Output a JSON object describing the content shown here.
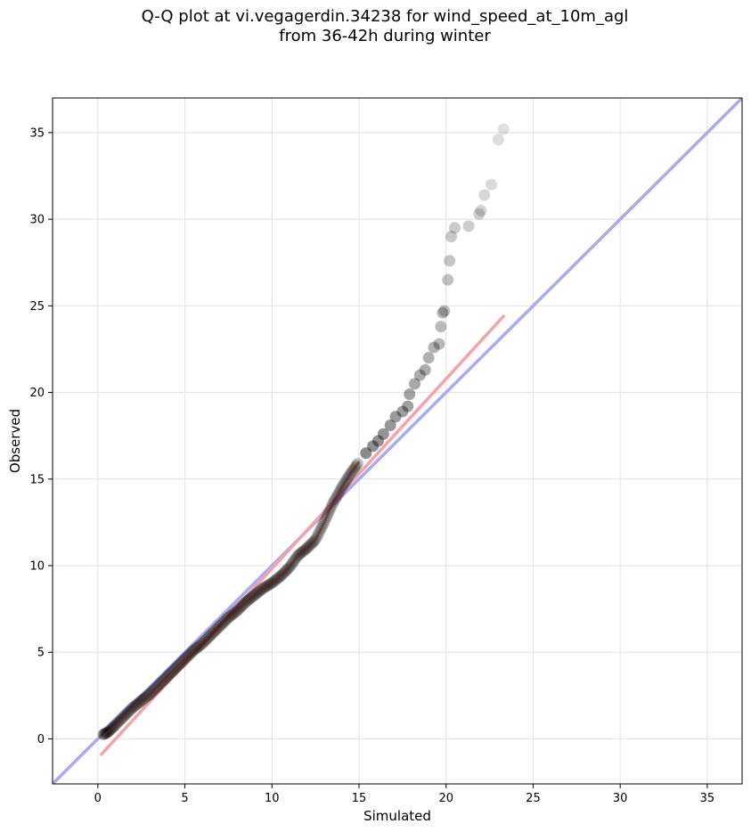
{
  "chart_data": {
    "type": "scatter",
    "title_lines": [
      "Q-Q plot at vi.vegagerdin.34238 for wind_speed_at_10m_agl",
      "from 36-42h during winter"
    ],
    "xlabel": "Simulated",
    "ylabel": "Observed",
    "xlim": [
      -2.6,
      37.0
    ],
    "ylim": [
      -2.6,
      37.0
    ],
    "xticks": [
      0,
      5,
      10,
      15,
      20,
      25,
      30,
      35
    ],
    "yticks": [
      0,
      5,
      10,
      15,
      20,
      25,
      30,
      35
    ],
    "grid": true,
    "quantile_curve": [
      [
        0.3,
        0.25
      ],
      [
        0.6,
        0.4
      ],
      [
        1.0,
        0.8
      ],
      [
        1.5,
        1.3
      ],
      [
        2.0,
        1.8
      ],
      [
        2.5,
        2.2
      ],
      [
        3.0,
        2.6
      ],
      [
        3.5,
        3.1
      ],
      [
        4.0,
        3.6
      ],
      [
        4.5,
        4.1
      ],
      [
        5.0,
        4.6
      ],
      [
        5.5,
        5.1
      ],
      [
        6.0,
        5.5
      ],
      [
        6.5,
        6.0
      ],
      [
        7.0,
        6.5
      ],
      [
        7.5,
        7.0
      ],
      [
        8.0,
        7.4
      ],
      [
        8.5,
        7.9
      ],
      [
        9.0,
        8.3
      ],
      [
        9.5,
        8.7
      ],
      [
        10.0,
        9.0
      ],
      [
        10.5,
        9.4
      ],
      [
        11.0,
        9.9
      ],
      [
        11.5,
        10.6
      ],
      [
        12.0,
        11.0
      ],
      [
        12.5,
        11.5
      ],
      [
        13.0,
        12.5
      ],
      [
        13.5,
        13.6
      ],
      [
        14.0,
        14.5
      ],
      [
        14.5,
        15.3
      ],
      [
        15.0,
        16.0
      ]
    ],
    "tail_points": [
      [
        15.4,
        16.5
      ],
      [
        15.8,
        16.9
      ],
      [
        16.1,
        17.2
      ],
      [
        16.4,
        17.6
      ],
      [
        16.8,
        18.1
      ],
      [
        17.1,
        18.6
      ],
      [
        17.5,
        18.9
      ],
      [
        17.8,
        19.2
      ],
      [
        17.9,
        19.9
      ],
      [
        18.2,
        20.5
      ],
      [
        18.5,
        21.0
      ],
      [
        18.8,
        21.3
      ],
      [
        19.0,
        22.0
      ],
      [
        19.3,
        22.6
      ],
      [
        19.6,
        22.8
      ],
      [
        19.7,
        23.8
      ],
      [
        19.8,
        24.6
      ],
      [
        19.9,
        24.7
      ],
      [
        20.1,
        26.5
      ],
      [
        20.2,
        27.6
      ],
      [
        20.3,
        29.0
      ],
      [
        20.5,
        29.5
      ],
      [
        21.3,
        29.6
      ],
      [
        21.9,
        30.3
      ],
      [
        22.0,
        30.5
      ],
      [
        22.2,
        31.4
      ],
      [
        22.6,
        32.0
      ],
      [
        23.0,
        34.6
      ],
      [
        23.3,
        35.2
      ]
    ],
    "reference_lines": [
      {
        "kind": "y = x",
        "color": "#aaaaf4",
        "from": [
          -2.6,
          -2.6
        ],
        "to": [
          37.0,
          37.0
        ]
      },
      {
        "kind": "fit",
        "color": "#f5a3a8",
        "from": [
          0.2,
          -0.9
        ],
        "to": [
          23.3,
          24.4
        ]
      }
    ],
    "colors": {
      "points": "#000000",
      "core_line": "#6a1a10"
    }
  }
}
